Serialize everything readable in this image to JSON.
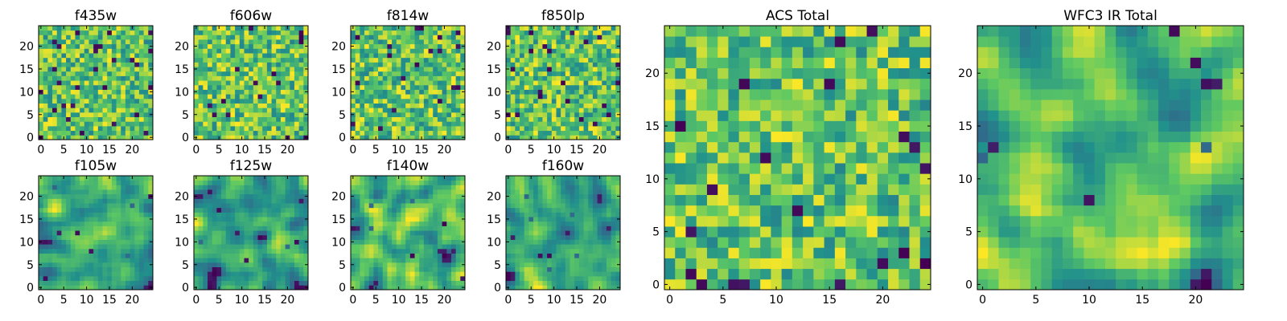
{
  "chart_data": [
    {
      "type": "heatmap",
      "title": "f435w",
      "xlim": [
        0,
        24
      ],
      "ylim": [
        0,
        24
      ],
      "x_ticks": [
        0,
        5,
        10,
        15,
        20
      ],
      "y_ticks": [
        0,
        5,
        10,
        15,
        20
      ],
      "x_tick_labels": [
        "0",
        "5",
        "10",
        "15",
        "20"
      ],
      "y_tick_labels": [
        "0",
        "5",
        "10",
        "15",
        "20"
      ],
      "grid_size": [
        25,
        25
      ],
      "colormap": "viridis",
      "texture": "noisy",
      "seed": 11
    },
    {
      "type": "heatmap",
      "title": "f606w",
      "xlim": [
        0,
        24
      ],
      "ylim": [
        0,
        24
      ],
      "x_ticks": [
        0,
        5,
        10,
        15,
        20
      ],
      "y_ticks": [
        0,
        5,
        10,
        15,
        20
      ],
      "x_tick_labels": [
        "0",
        "5",
        "10",
        "15",
        "20"
      ],
      "y_tick_labels": [
        "0",
        "5",
        "10",
        "15",
        "20"
      ],
      "grid_size": [
        25,
        25
      ],
      "colormap": "viridis",
      "texture": "noisy",
      "seed": 23
    },
    {
      "type": "heatmap",
      "title": "f814w",
      "xlim": [
        0,
        24
      ],
      "ylim": [
        0,
        24
      ],
      "x_ticks": [
        0,
        5,
        10,
        15,
        20
      ],
      "y_ticks": [
        0,
        5,
        10,
        15,
        20
      ],
      "x_tick_labels": [
        "0",
        "5",
        "10",
        "15",
        "20"
      ],
      "y_tick_labels": [
        "0",
        "5",
        "10",
        "15",
        "20"
      ],
      "grid_size": [
        25,
        25
      ],
      "colormap": "viridis",
      "texture": "noisy",
      "seed": 37
    },
    {
      "type": "heatmap",
      "title": "f850lp",
      "xlim": [
        0,
        24
      ],
      "ylim": [
        0,
        24
      ],
      "x_ticks": [
        0,
        5,
        10,
        15,
        20
      ],
      "y_ticks": [
        0,
        5,
        10,
        15,
        20
      ],
      "x_tick_labels": [
        "0",
        "5",
        "10",
        "15",
        "20"
      ],
      "y_tick_labels": [
        "0",
        "5",
        "10",
        "15",
        "20"
      ],
      "grid_size": [
        25,
        25
      ],
      "colormap": "viridis",
      "texture": "noisy",
      "seed": 41
    },
    {
      "type": "heatmap",
      "title": "f105w",
      "xlim": [
        0,
        24
      ],
      "ylim": [
        0,
        24
      ],
      "x_ticks": [
        0,
        5,
        10,
        15,
        20
      ],
      "y_ticks": [
        0,
        5,
        10,
        15,
        20
      ],
      "x_tick_labels": [
        "0",
        "5",
        "10",
        "15",
        "20"
      ],
      "y_tick_labels": [
        "0",
        "5",
        "10",
        "15",
        "20"
      ],
      "grid_size": [
        25,
        25
      ],
      "colormap": "viridis",
      "texture": "smooth",
      "seed": 53
    },
    {
      "type": "heatmap",
      "title": "f125w",
      "xlim": [
        0,
        24
      ],
      "ylim": [
        0,
        24
      ],
      "x_ticks": [
        0,
        5,
        10,
        15,
        20
      ],
      "y_ticks": [
        0,
        5,
        10,
        15,
        20
      ],
      "x_tick_labels": [
        "0",
        "5",
        "10",
        "15",
        "20"
      ],
      "y_tick_labels": [
        "0",
        "5",
        "10",
        "15",
        "20"
      ],
      "grid_size": [
        25,
        25
      ],
      "colormap": "viridis",
      "texture": "smooth",
      "seed": 67
    },
    {
      "type": "heatmap",
      "title": "f140w",
      "xlim": [
        0,
        24
      ],
      "ylim": [
        0,
        24
      ],
      "x_ticks": [
        0,
        5,
        10,
        15,
        20
      ],
      "y_ticks": [
        0,
        5,
        10,
        15,
        20
      ],
      "x_tick_labels": [
        "0",
        "5",
        "10",
        "15",
        "20"
      ],
      "y_tick_labels": [
        "0",
        "5",
        "10",
        "15",
        "20"
      ],
      "grid_size": [
        25,
        25
      ],
      "colormap": "viridis",
      "texture": "smooth",
      "seed": 71
    },
    {
      "type": "heatmap",
      "title": "f160w",
      "xlim": [
        0,
        24
      ],
      "ylim": [
        0,
        24
      ],
      "x_ticks": [
        0,
        5,
        10,
        15,
        20
      ],
      "y_ticks": [
        0,
        5,
        10,
        15,
        20
      ],
      "x_tick_labels": [
        "0",
        "5",
        "10",
        "15",
        "20"
      ],
      "y_tick_labels": [
        "0",
        "5",
        "10",
        "15",
        "20"
      ],
      "grid_size": [
        25,
        25
      ],
      "colormap": "viridis",
      "texture": "smooth",
      "seed": 89
    },
    {
      "type": "heatmap",
      "title": "ACS Total",
      "xlim": [
        0,
        24
      ],
      "ylim": [
        0,
        24
      ],
      "x_ticks": [
        0,
        5,
        10,
        15,
        20
      ],
      "y_ticks": [
        0,
        5,
        10,
        15,
        20
      ],
      "x_tick_labels": [
        "0",
        "5",
        "10",
        "15",
        "20"
      ],
      "y_tick_labels": [
        "0",
        "5",
        "10",
        "15",
        "20"
      ],
      "grid_size": [
        25,
        25
      ],
      "colormap": "viridis",
      "texture": "noisy",
      "seed": 97
    },
    {
      "type": "heatmap",
      "title": "WFC3 IR Total",
      "xlim": [
        0,
        24
      ],
      "ylim": [
        0,
        24
      ],
      "x_ticks": [
        0,
        5,
        10,
        15,
        20
      ],
      "y_ticks": [
        0,
        5,
        10,
        15,
        20
      ],
      "x_tick_labels": [
        "0",
        "5",
        "10",
        "15",
        "20"
      ],
      "y_tick_labels": [
        "0",
        "5",
        "10",
        "15",
        "20"
      ],
      "grid_size": [
        25,
        25
      ],
      "colormap": "viridis",
      "texture": "smooth",
      "seed": 103
    }
  ],
  "colors": {
    "viridis_stops": [
      "#440154",
      "#3b528b",
      "#21918c",
      "#5ec962",
      "#fde725"
    ],
    "frame": "#000000",
    "background": "#ffffff"
  }
}
